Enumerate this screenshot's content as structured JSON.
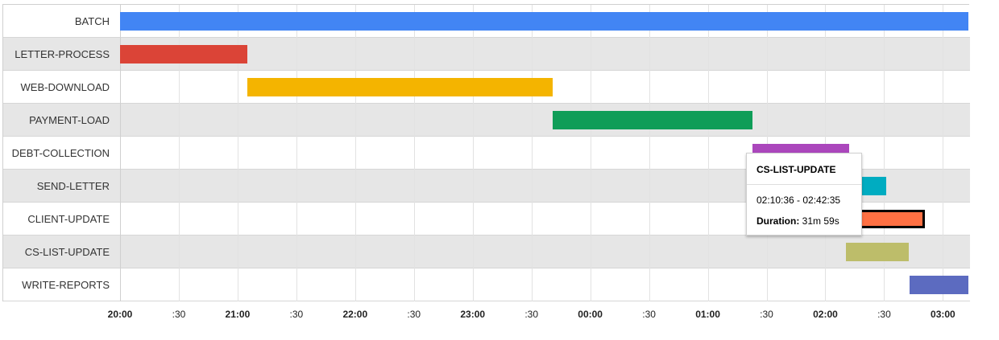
{
  "chart_data": {
    "type": "gantt",
    "x_axis": {
      "range": [
        "20:00",
        "03:13"
      ],
      "ticks": [
        {
          "time": "20:00",
          "label": "20:00",
          "major": true
        },
        {
          "time": "20:30",
          "label": ":30",
          "major": false
        },
        {
          "time": "21:00",
          "label": "21:00",
          "major": true
        },
        {
          "time": "21:30",
          "label": ":30",
          "major": false
        },
        {
          "time": "22:00",
          "label": "22:00",
          "major": true
        },
        {
          "time": "22:30",
          "label": ":30",
          "major": false
        },
        {
          "time": "23:00",
          "label": "23:00",
          "major": true
        },
        {
          "time": "23:30",
          "label": ":30",
          "major": false
        },
        {
          "time": "00:00",
          "label": "00:00",
          "major": true
        },
        {
          "time": "00:30",
          "label": ":30",
          "major": false
        },
        {
          "time": "01:00",
          "label": "01:00",
          "major": true
        },
        {
          "time": "01:30",
          "label": ":30",
          "major": false
        },
        {
          "time": "02:00",
          "label": "02:00",
          "major": true
        },
        {
          "time": "02:30",
          "label": ":30",
          "major": false
        },
        {
          "time": "03:00",
          "label": "03:00",
          "major": true
        }
      ]
    },
    "tasks": [
      {
        "name": "BATCH",
        "start": "20:00",
        "end": "03:13",
        "color": "#4285f4"
      },
      {
        "name": "LETTER-PROCESS",
        "start": "20:00",
        "end": "21:05",
        "color": "#db4437"
      },
      {
        "name": "WEB-DOWNLOAD",
        "start": "21:05",
        "end": "23:41",
        "color": "#f4b400"
      },
      {
        "name": "PAYMENT-LOAD",
        "start": "23:41",
        "end": "01:23",
        "color": "#0f9d58"
      },
      {
        "name": "DEBT-COLLECTION",
        "start": "01:23",
        "end": "02:12",
        "color": "#ab47bc"
      },
      {
        "name": "SEND-LETTER",
        "start": "02:12",
        "end": "02:31",
        "color": "#00acc1"
      },
      {
        "name": "CLIENT-UPDATE",
        "start": "02:12",
        "end": "02:51",
        "color": "#ff7043",
        "selected": true
      },
      {
        "name": "CS-LIST-UPDATE",
        "start": "02:10:36",
        "end": "02:42:35",
        "color": "#bdbd6a"
      },
      {
        "name": "WRITE-REPORTS",
        "start": "02:43",
        "end": "03:13",
        "color": "#5c6bc0"
      }
    ],
    "tooltip": {
      "title": "CS-LIST-UPDATE",
      "range": "02:10:36 - 02:42:35",
      "duration_label": "Duration:",
      "duration_value": "31m 59s"
    }
  }
}
